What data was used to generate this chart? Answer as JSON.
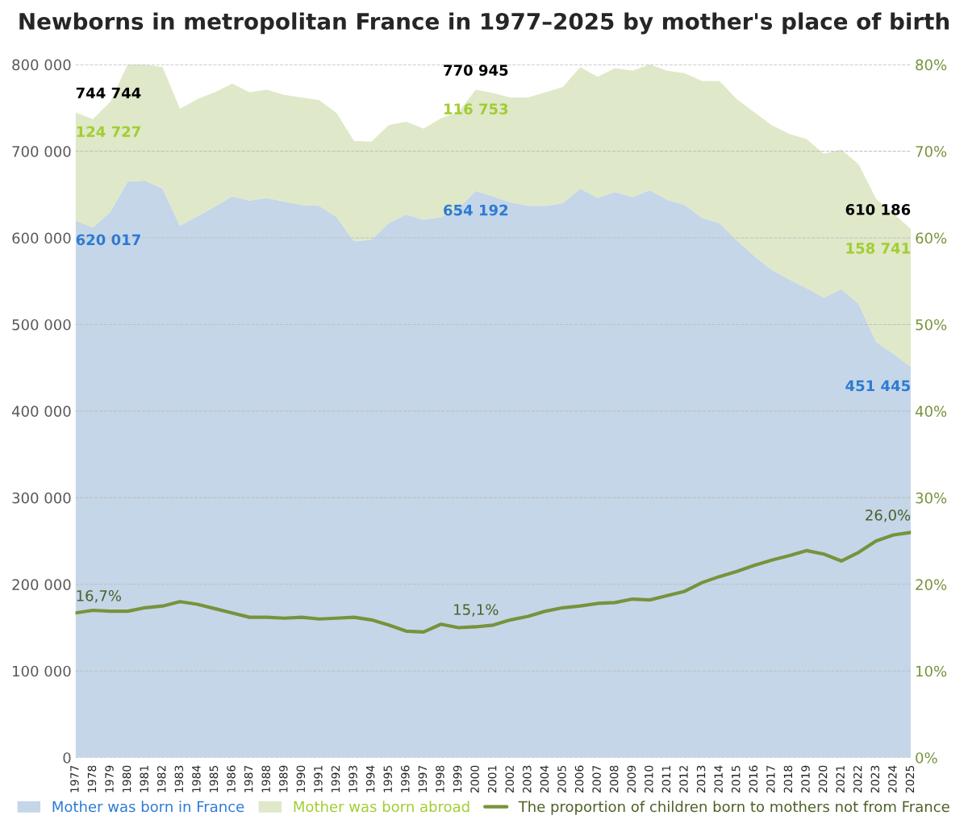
{
  "chart_data": {
    "type": "area",
    "title": "Newborns in metropolitan France in 1977–2025 by mother's place of birth",
    "categories": [
      "1977",
      "1978",
      "1979",
      "1980",
      "1981",
      "1982",
      "1983",
      "1984",
      "1985",
      "1986",
      "1987",
      "1988",
      "1989",
      "1990",
      "1991",
      "1992",
      "1993",
      "1994",
      "1995",
      "1996",
      "1997",
      "1998",
      "1999",
      "2000",
      "2001",
      "2002",
      "2003",
      "2004",
      "2005",
      "2006",
      "2007",
      "2008",
      "2009",
      "2010",
      "2011",
      "2012",
      "2013",
      "2014",
      "2015",
      "2016",
      "2017",
      "2018",
      "2019",
      "2020",
      "2021",
      "2022",
      "2023",
      "2024",
      "2025"
    ],
    "stacked": true,
    "series": [
      {
        "name": "Mother was born in France",
        "color": "#c5d6e9",
        "values": [
          620017,
          612000,
          630000,
          665000,
          666000,
          657000,
          614000,
          625000,
          636000,
          648000,
          643000,
          646000,
          642000,
          638000,
          637000,
          624000,
          596000,
          598000,
          617000,
          627000,
          621000,
          624000,
          634000,
          654192,
          648000,
          641000,
          637000,
          637000,
          640000,
          657000,
          646000,
          653000,
          647000,
          655000,
          644000,
          638000,
          623000,
          617000,
          597000,
          579000,
          563000,
          552000,
          542000,
          531000,
          541000,
          524000,
          480000,
          466000,
          451445
        ],
        "value_labels": [
          "620 017",
          null,
          null,
          null,
          null,
          null,
          null,
          null,
          null,
          null,
          null,
          null,
          null,
          null,
          null,
          null,
          null,
          null,
          null,
          null,
          null,
          null,
          null,
          "654 192",
          null,
          null,
          null,
          null,
          null,
          null,
          null,
          null,
          null,
          null,
          null,
          null,
          null,
          null,
          null,
          null,
          null,
          null,
          null,
          null,
          null,
          null,
          null,
          null,
          "451 445"
        ]
      },
      {
        "name": "Mother was born abroad",
        "color": "#dfe8c8",
        "values": [
          124727,
          125000,
          127000,
          135000,
          134000,
          140000,
          135000,
          135000,
          132000,
          130000,
          125000,
          125000,
          123000,
          124000,
          122000,
          120000,
          116000,
          113000,
          113000,
          107000,
          105000,
          114000,
          111000,
          116753,
          119000,
          121000,
          125000,
          131000,
          134000,
          140000,
          140000,
          143000,
          146000,
          145000,
          149000,
          152000,
          158000,
          164000,
          163000,
          166000,
          167000,
          168000,
          172000,
          166000,
          161000,
          161000,
          165000,
          162000,
          158741
        ],
        "value_labels": [
          "124 727",
          null,
          null,
          null,
          null,
          null,
          null,
          null,
          null,
          null,
          null,
          null,
          null,
          null,
          null,
          null,
          null,
          null,
          null,
          null,
          null,
          null,
          null,
          "116 753",
          null,
          null,
          null,
          null,
          null,
          null,
          null,
          null,
          null,
          null,
          null,
          null,
          null,
          null,
          null,
          null,
          null,
          null,
          null,
          null,
          null,
          null,
          null,
          null,
          "158 741"
        ]
      },
      {
        "name": "The proportion of children born to mothers not from France",
        "type": "line",
        "axis": "y2",
        "color": "#77933c",
        "values": [
          16.7,
          17.0,
          16.9,
          16.9,
          17.3,
          17.5,
          18.0,
          17.7,
          17.2,
          16.7,
          16.2,
          16.2,
          16.1,
          16.2,
          16.0,
          16.1,
          16.2,
          15.9,
          15.3,
          14.6,
          14.5,
          15.4,
          15.0,
          15.1,
          15.3,
          15.9,
          16.3,
          16.9,
          17.3,
          17.5,
          17.8,
          17.9,
          18.3,
          18.2,
          18.7,
          19.2,
          20.2,
          20.9,
          21.5,
          22.2,
          22.8,
          23.3,
          23.9,
          23.5,
          22.7,
          23.7,
          25.0,
          25.7,
          26.0
        ],
        "value_labels": [
          "16,7%",
          null,
          null,
          null,
          null,
          null,
          null,
          null,
          null,
          null,
          null,
          null,
          null,
          null,
          null,
          null,
          null,
          null,
          null,
          null,
          null,
          null,
          null,
          "15,1%",
          null,
          null,
          null,
          null,
          null,
          null,
          null,
          null,
          null,
          null,
          null,
          null,
          null,
          null,
          null,
          null,
          null,
          null,
          null,
          null,
          null,
          null,
          null,
          null,
          "26,0%"
        ]
      }
    ],
    "totals": [
      "744 744",
      null,
      null,
      null,
      null,
      null,
      null,
      null,
      null,
      null,
      null,
      null,
      null,
      null,
      null,
      null,
      null,
      null,
      null,
      null,
      null,
      null,
      null,
      "770 945",
      null,
      null,
      null,
      null,
      null,
      null,
      null,
      null,
      null,
      null,
      null,
      null,
      null,
      null,
      null,
      null,
      null,
      null,
      null,
      null,
      null,
      null,
      null,
      null,
      "610 186"
    ],
    "ylim": [
      0,
      800000
    ],
    "yticks": [
      {
        "value": 0,
        "label": "0"
      },
      {
        "value": 100000,
        "label": "100 000"
      },
      {
        "value": 200000,
        "label": "200 000"
      },
      {
        "value": 300000,
        "label": "300 000"
      },
      {
        "value": 400000,
        "label": "400 000"
      },
      {
        "value": 500000,
        "label": "500 000"
      },
      {
        "value": 600000,
        "label": "600 000"
      },
      {
        "value": 700000,
        "label": "700 000"
      },
      {
        "value": 800000,
        "label": "800 000"
      }
    ],
    "y2lim": [
      0,
      80
    ],
    "y2ticks": [
      {
        "value": 0,
        "label": "0%"
      },
      {
        "value": 10,
        "label": "10%"
      },
      {
        "value": 20,
        "label": "20%"
      },
      {
        "value": 30,
        "label": "30%"
      },
      {
        "value": 40,
        "label": "40%"
      },
      {
        "value": 50,
        "label": "50%"
      },
      {
        "value": 60,
        "label": "60%"
      },
      {
        "value": 70,
        "label": "70%"
      },
      {
        "value": 80,
        "label": "80%"
      }
    ],
    "grid": "y",
    "legend": "bottom"
  }
}
